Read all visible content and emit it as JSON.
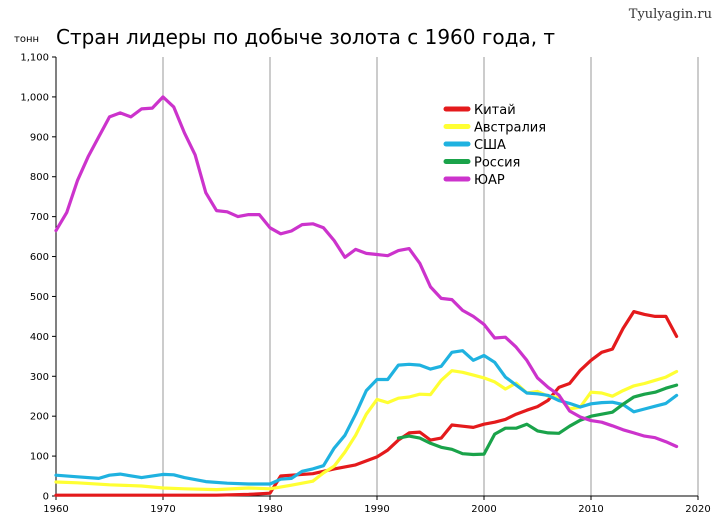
{
  "watermark": "Tyulyagin.ru",
  "chart_data": {
    "type": "line",
    "title": "Стран лидеры по добыче золота с 1960 года, т",
    "ylabel": "тонн",
    "xlabel": "",
    "xlim": [
      1960,
      2020
    ],
    "ylim": [
      0,
      1100
    ],
    "x_ticks": [
      "1960",
      "1970",
      "1980",
      "1990",
      "2000",
      "2010",
      "2020"
    ],
    "y_ticks": [
      "0",
      "100",
      "200",
      "300",
      "400",
      "500",
      "600",
      "700",
      "800",
      "900",
      "1,000",
      "1,100"
    ],
    "grid": "vertical",
    "legend": "top-right",
    "series": [
      {
        "name": "Китай",
        "color": "#e41a1c",
        "points": [
          [
            1960,
            2
          ],
          [
            1965,
            2
          ],
          [
            1970,
            2
          ],
          [
            1975,
            2
          ],
          [
            1978,
            4
          ],
          [
            1980,
            7
          ],
          [
            1981,
            50
          ],
          [
            1982,
            52
          ],
          [
            1984,
            56
          ],
          [
            1985,
            62
          ],
          [
            1986,
            68
          ],
          [
            1988,
            78
          ],
          [
            1990,
            98
          ],
          [
            1991,
            115
          ],
          [
            1992,
            140
          ],
          [
            1993,
            158
          ],
          [
            1994,
            160
          ],
          [
            1995,
            140
          ],
          [
            1996,
            145
          ],
          [
            1997,
            178
          ],
          [
            1998,
            175
          ],
          [
            1999,
            172
          ],
          [
            2000,
            180
          ],
          [
            2001,
            185
          ],
          [
            2002,
            192
          ],
          [
            2003,
            205
          ],
          [
            2004,
            215
          ],
          [
            2005,
            224
          ],
          [
            2006,
            240
          ],
          [
            2007,
            272
          ],
          [
            2008,
            282
          ],
          [
            2009,
            315
          ],
          [
            2010,
            340
          ],
          [
            2011,
            360
          ],
          [
            2012,
            368
          ],
          [
            2013,
            420
          ],
          [
            2014,
            462
          ],
          [
            2015,
            455
          ],
          [
            2016,
            450
          ],
          [
            2017,
            450
          ],
          [
            2018,
            400
          ]
        ]
      },
      {
        "name": "Австралия",
        "color": "#ffff33",
        "points": [
          [
            1960,
            35
          ],
          [
            1962,
            33
          ],
          [
            1965,
            28
          ],
          [
            1968,
            25
          ],
          [
            1970,
            20
          ],
          [
            1972,
            18
          ],
          [
            1975,
            16
          ],
          [
            1978,
            20
          ],
          [
            1980,
            18
          ],
          [
            1982,
            27
          ],
          [
            1984,
            37
          ],
          [
            1985,
            58
          ],
          [
            1986,
            75
          ],
          [
            1987,
            110
          ],
          [
            1988,
            152
          ],
          [
            1989,
            205
          ],
          [
            1990,
            242
          ],
          [
            1991,
            234
          ],
          [
            1992,
            245
          ],
          [
            1993,
            248
          ],
          [
            1994,
            255
          ],
          [
            1995,
            254
          ],
          [
            1996,
            290
          ],
          [
            1997,
            314
          ],
          [
            1998,
            310
          ],
          [
            1999,
            303
          ],
          [
            2000,
            296
          ],
          [
            2001,
            286
          ],
          [
            2002,
            268
          ],
          [
            2003,
            283
          ],
          [
            2004,
            258
          ],
          [
            2005,
            262
          ],
          [
            2006,
            250
          ],
          [
            2007,
            247
          ],
          [
            2008,
            218
          ],
          [
            2009,
            223
          ],
          [
            2010,
            260
          ],
          [
            2011,
            258
          ],
          [
            2012,
            250
          ],
          [
            2013,
            264
          ],
          [
            2014,
            276
          ],
          [
            2015,
            282
          ],
          [
            2016,
            290
          ],
          [
            2017,
            298
          ],
          [
            2018,
            312
          ]
        ]
      },
      {
        "name": "США",
        "color": "#1fb2e0",
        "points": [
          [
            1960,
            52
          ],
          [
            1962,
            48
          ],
          [
            1964,
            44
          ],
          [
            1965,
            52
          ],
          [
            1966,
            55
          ],
          [
            1968,
            46
          ],
          [
            1970,
            54
          ],
          [
            1971,
            53
          ],
          [
            1972,
            46
          ],
          [
            1974,
            36
          ],
          [
            1976,
            32
          ],
          [
            1978,
            30
          ],
          [
            1980,
            30
          ],
          [
            1981,
            42
          ],
          [
            1982,
            44
          ],
          [
            1983,
            62
          ],
          [
            1984,
            68
          ],
          [
            1985,
            76
          ],
          [
            1986,
            120
          ],
          [
            1987,
            152
          ],
          [
            1988,
            205
          ],
          [
            1989,
            264
          ],
          [
            1990,
            292
          ],
          [
            1991,
            292
          ],
          [
            1992,
            328
          ],
          [
            1993,
            330
          ],
          [
            1994,
            328
          ],
          [
            1995,
            318
          ],
          [
            1996,
            325
          ],
          [
            1997,
            360
          ],
          [
            1998,
            364
          ],
          [
            1999,
            340
          ],
          [
            2000,
            352
          ],
          [
            2001,
            335
          ],
          [
            2002,
            298
          ],
          [
            2003,
            278
          ],
          [
            2004,
            258
          ],
          [
            2005,
            256
          ],
          [
            2006,
            252
          ],
          [
            2007,
            239
          ],
          [
            2008,
            232
          ],
          [
            2009,
            223
          ],
          [
            2010,
            231
          ],
          [
            2011,
            234
          ],
          [
            2012,
            235
          ],
          [
            2013,
            229
          ],
          [
            2014,
            211
          ],
          [
            2015,
            218
          ],
          [
            2016,
            225
          ],
          [
            2017,
            232
          ],
          [
            2018,
            252
          ]
        ]
      },
      {
        "name": "Россия",
        "color": "#1aa34a",
        "points": [
          [
            1992,
            145
          ],
          [
            1993,
            150
          ],
          [
            1994,
            145
          ],
          [
            1995,
            132
          ],
          [
            1996,
            122
          ],
          [
            1997,
            117
          ],
          [
            1998,
            106
          ],
          [
            1999,
            104
          ],
          [
            2000,
            105
          ],
          [
            2001,
            155
          ],
          [
            2002,
            170
          ],
          [
            2003,
            170
          ],
          [
            2004,
            180
          ],
          [
            2005,
            163
          ],
          [
            2006,
            158
          ],
          [
            2007,
            157
          ],
          [
            2008,
            175
          ],
          [
            2009,
            190
          ],
          [
            2010,
            200
          ],
          [
            2011,
            205
          ],
          [
            2012,
            210
          ],
          [
            2013,
            230
          ],
          [
            2014,
            248
          ],
          [
            2015,
            255
          ],
          [
            2016,
            260
          ],
          [
            2017,
            270
          ],
          [
            2018,
            278
          ]
        ]
      },
      {
        "name": "ЮАР",
        "color": "#cc33cc",
        "points": [
          [
            1960,
            665
          ],
          [
            1961,
            710
          ],
          [
            1962,
            790
          ],
          [
            1963,
            850
          ],
          [
            1964,
            900
          ],
          [
            1965,
            950
          ],
          [
            1966,
            960
          ],
          [
            1967,
            950
          ],
          [
            1968,
            970
          ],
          [
            1969,
            972
          ],
          [
            1970,
            1000
          ],
          [
            1971,
            975
          ],
          [
            1972,
            910
          ],
          [
            1973,
            855
          ],
          [
            1974,
            760
          ],
          [
            1975,
            715
          ],
          [
            1976,
            712
          ],
          [
            1977,
            700
          ],
          [
            1978,
            705
          ],
          [
            1979,
            705
          ],
          [
            1980,
            672
          ],
          [
            1981,
            657
          ],
          [
            1982,
            664
          ],
          [
            1983,
            680
          ],
          [
            1984,
            682
          ],
          [
            1985,
            672
          ],
          [
            1986,
            640
          ],
          [
            1987,
            598
          ],
          [
            1988,
            618
          ],
          [
            1989,
            608
          ],
          [
            1990,
            605
          ],
          [
            1991,
            602
          ],
          [
            1992,
            615
          ],
          [
            1993,
            620
          ],
          [
            1994,
            583
          ],
          [
            1995,
            524
          ],
          [
            1996,
            495
          ],
          [
            1997,
            492
          ],
          [
            1998,
            465
          ],
          [
            1999,
            450
          ],
          [
            2000,
            430
          ],
          [
            2001,
            396
          ],
          [
            2002,
            398
          ],
          [
            2003,
            373
          ],
          [
            2004,
            340
          ],
          [
            2005,
            296
          ],
          [
            2006,
            272
          ],
          [
            2007,
            253
          ],
          [
            2008,
            213
          ],
          [
            2009,
            198
          ],
          [
            2010,
            189
          ],
          [
            2011,
            185
          ],
          [
            2012,
            176
          ],
          [
            2013,
            166
          ],
          [
            2014,
            158
          ],
          [
            2015,
            150
          ],
          [
            2016,
            146
          ],
          [
            2017,
            136
          ],
          [
            2018,
            124
          ]
        ]
      }
    ]
  }
}
